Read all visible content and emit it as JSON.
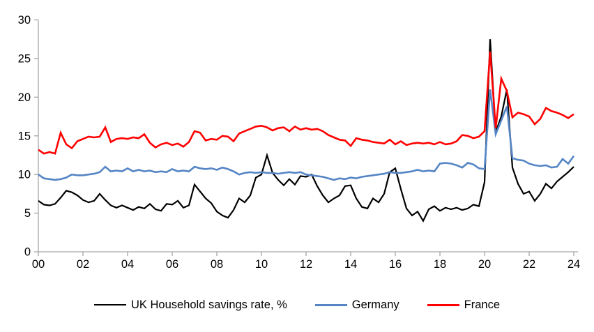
{
  "chart_data": {
    "type": "line",
    "title": "",
    "xlabel": "",
    "ylabel": "",
    "grid": false,
    "legend_position": "bottom",
    "x_axis": {
      "start_year": 2000,
      "frequency": "quarterly",
      "tick_labels": [
        "00",
        "02",
        "04",
        "06",
        "08",
        "10",
        "12",
        "14",
        "16",
        "18",
        "20",
        "22",
        "24"
      ],
      "tick_every_quarters": 8
    },
    "y_axis": {
      "min": 0,
      "max": 30,
      "ticks": [
        "0",
        "5",
        "10",
        "15",
        "20",
        "25",
        "30"
      ]
    },
    "axis_color": "#a6a6a6",
    "text_color": "#000000",
    "series": [
      {
        "name": "UK Household savings rate, %",
        "color": "#000000",
        "line_width": 2.2,
        "values": [
          6.6,
          6.1,
          6.0,
          6.2,
          7.0,
          7.9,
          7.7,
          7.3,
          6.7,
          6.4,
          6.6,
          7.5,
          6.7,
          6.0,
          5.7,
          6.0,
          5.7,
          5.4,
          5.8,
          5.6,
          6.2,
          5.5,
          5.3,
          6.2,
          6.1,
          6.6,
          5.7,
          6.0,
          8.7,
          7.8,
          6.9,
          6.3,
          5.2,
          4.7,
          4.4,
          5.4,
          6.9,
          6.4,
          7.3,
          9.6,
          10.0,
          12.5,
          10.2,
          9.3,
          8.6,
          9.4,
          8.7,
          9.8,
          9.7,
          10.0,
          8.5,
          7.3,
          6.4,
          6.9,
          7.3,
          8.5,
          8.6,
          6.9,
          5.8,
          5.6,
          6.9,
          6.4,
          7.5,
          10.3,
          10.8,
          8.1,
          5.6,
          4.7,
          5.2,
          4.0,
          5.5,
          5.9,
          5.3,
          5.7,
          5.5,
          5.7,
          5.4,
          5.6,
          6.1,
          5.9,
          9.0,
          27.5,
          15.5,
          17.5,
          21.0,
          10.9,
          8.8,
          7.5,
          7.8,
          6.6,
          7.5,
          8.8,
          8.2,
          9.1,
          9.7,
          10.3,
          11.0
        ]
      },
      {
        "name": "Germany",
        "color": "#5585c5",
        "line_width": 2.6,
        "values": [
          10.0,
          9.5,
          9.4,
          9.3,
          9.4,
          9.6,
          10.0,
          9.9,
          9.9,
          10.0,
          10.1,
          10.3,
          11.0,
          10.4,
          10.5,
          10.4,
          10.8,
          10.4,
          10.6,
          10.4,
          10.5,
          10.3,
          10.4,
          10.3,
          10.7,
          10.4,
          10.5,
          10.4,
          11.0,
          10.8,
          10.7,
          10.8,
          10.6,
          10.9,
          10.7,
          10.4,
          10.0,
          10.2,
          10.3,
          10.2,
          10.3,
          10.2,
          10.2,
          10.1,
          10.2,
          10.3,
          10.2,
          10.3,
          10.0,
          9.9,
          9.8,
          9.7,
          9.5,
          9.3,
          9.5,
          9.4,
          9.6,
          9.5,
          9.7,
          9.8,
          9.9,
          10.0,
          10.1,
          10.3,
          10.2,
          10.2,
          10.3,
          10.4,
          10.6,
          10.4,
          10.5,
          10.4,
          11.4,
          11.5,
          11.4,
          11.2,
          10.9,
          11.5,
          11.3,
          10.8,
          10.7,
          21.0,
          15.2,
          17.0,
          18.8,
          12.1,
          11.9,
          11.8,
          11.4,
          11.2,
          11.1,
          11.2,
          10.9,
          11.0,
          12.0,
          11.4,
          12.4
        ]
      },
      {
        "name": "France",
        "color": "#ff0000",
        "line_width": 2.6,
        "values": [
          13.2,
          12.7,
          12.9,
          12.7,
          15.4,
          13.9,
          13.4,
          14.3,
          14.6,
          14.9,
          14.8,
          14.9,
          16.1,
          14.2,
          14.6,
          14.7,
          14.6,
          14.8,
          14.7,
          15.2,
          14.1,
          13.5,
          13.9,
          14.1,
          13.8,
          14.0,
          13.6,
          14.2,
          15.6,
          15.4,
          14.4,
          14.6,
          14.5,
          15.0,
          14.9,
          14.3,
          15.3,
          15.6,
          15.9,
          16.2,
          16.3,
          16.1,
          15.7,
          16.0,
          16.1,
          15.6,
          16.2,
          15.8,
          16.0,
          15.8,
          15.9,
          15.6,
          15.1,
          14.8,
          14.5,
          14.4,
          13.7,
          14.7,
          14.5,
          14.4,
          14.2,
          14.1,
          14.0,
          14.5,
          13.9,
          14.3,
          13.8,
          14.0,
          14.1,
          14.0,
          14.1,
          13.9,
          14.2,
          13.9,
          14.0,
          14.3,
          15.1,
          15.0,
          14.7,
          14.9,
          15.6,
          25.9,
          16.0,
          22.4,
          20.8,
          17.4,
          18.0,
          17.8,
          17.5,
          16.5,
          17.2,
          18.6,
          18.2,
          18.0,
          17.7,
          17.3,
          17.8
        ]
      }
    ]
  }
}
